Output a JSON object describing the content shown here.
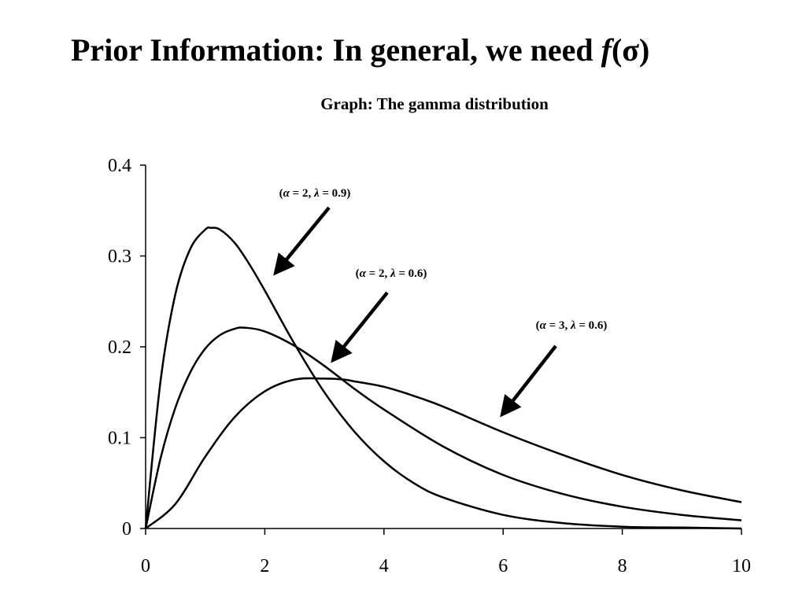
{
  "slide": {
    "title_prefix": "Prior Information: In general, we need ",
    "title_func": "f",
    "title_arg": "(σ)"
  },
  "chart_data": {
    "type": "line",
    "title": "Graph: The gamma distribution",
    "xlabel": "",
    "ylabel": "",
    "xlim": [
      0,
      10
    ],
    "ylim": [
      0,
      0.4
    ],
    "x_ticks": [
      0,
      2,
      4,
      6,
      8,
      10
    ],
    "y_ticks": [
      0,
      0.1,
      0.2,
      0.3,
      0.4
    ],
    "x_tick_labels": [
      "0",
      "2",
      "4",
      "6",
      "8",
      "10"
    ],
    "y_tick_labels": [
      "0",
      "0.1",
      "0.2",
      "0.3",
      "0.4"
    ],
    "grid": false,
    "line_color": "#000000",
    "series": [
      {
        "x": [
          0,
          0.25,
          0.5,
          0.75,
          1.0,
          1.1,
          1.25,
          1.5,
          1.75,
          2.0,
          2.5,
          3.0,
          3.5,
          4.0,
          4.5,
          5.0,
          6.0,
          7.0,
          8.0,
          9.0,
          10.0
        ],
        "y": [
          0,
          0.162,
          0.258,
          0.308,
          0.329,
          0.331,
          0.329,
          0.314,
          0.29,
          0.262,
          0.203,
          0.15,
          0.107,
          0.074,
          0.05,
          0.034,
          0.015,
          0.006,
          0.002,
          0.001,
          0.0
        ]
      },
      {
        "x": [
          0,
          0.25,
          0.5,
          0.75,
          1.0,
          1.25,
          1.5,
          1.67,
          2.0,
          2.5,
          3.0,
          3.5,
          4.0,
          5.0,
          6.0,
          7.0,
          8.0,
          9.0,
          10.0
        ],
        "y": [
          0,
          0.077,
          0.133,
          0.172,
          0.198,
          0.213,
          0.22,
          0.221,
          0.217,
          0.201,
          0.179,
          0.154,
          0.131,
          0.09,
          0.059,
          0.038,
          0.024,
          0.015,
          0.009
        ]
      },
      {
        "x": [
          0,
          0.5,
          1.0,
          1.5,
          2.0,
          2.5,
          3.0,
          3.33,
          3.5,
          4.0,
          4.5,
          5.0,
          6.0,
          7.0,
          8.0,
          9.0,
          10.0
        ],
        "y": [
          0,
          0.027,
          0.079,
          0.123,
          0.151,
          0.164,
          0.165,
          0.164,
          0.162,
          0.156,
          0.146,
          0.134,
          0.106,
          0.081,
          0.059,
          0.042,
          0.029
        ]
      }
    ],
    "annotations": [
      {
        "alpha": "2",
        "lambda": "0.9"
      },
      {
        "alpha": "2",
        "lambda": "0.6"
      },
      {
        "alpha": "3",
        "lambda": "0.6"
      }
    ]
  }
}
